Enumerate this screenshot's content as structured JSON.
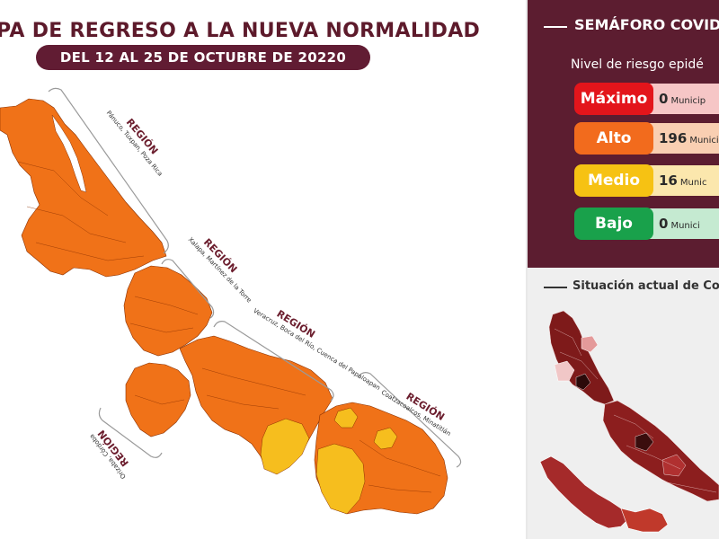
{
  "header": {
    "title": "PA DE REGRESO A LA NUEVA NORMALIDAD",
    "dates": "DEL 12  AL 25 DE OCTUBRE DE 20220"
  },
  "regions": [
    {
      "name": "REGIÓN",
      "cities": "Pánuco, Tuxpan, Poza Rica"
    },
    {
      "name": "REGIÓN",
      "cities": "Xalapa, Martínez de la Torre"
    },
    {
      "name": "REGIÓN",
      "cities": "Veracruz, Boca del Río, Cuenca del Papaloapan"
    },
    {
      "name": "REGIÓN",
      "cities": "Coatzacoalcos, Minatitlán"
    },
    {
      "name": "REGIÓN",
      "cities": "Orizaba, Córdoba"
    }
  ],
  "semaforo": {
    "title": "SEMÁFORO COVID",
    "subtitle": "Nivel de riesgo epidé",
    "levels": [
      {
        "label": "Máximo",
        "count": "0",
        "unit": "Municip",
        "color": "#e3151b",
        "tail": "#f6c6c6"
      },
      {
        "label": "Alto",
        "count": "196",
        "unit": "Munici",
        "color": "#f26b1d",
        "tail": "#f9cfb2"
      },
      {
        "label": "Medio",
        "count": "16",
        "unit": "Munic",
        "color": "#f6c213",
        "tail": "#fbe7ad"
      },
      {
        "label": "Bajo",
        "count": "0",
        "unit": "Munici",
        "color": "#19a14b",
        "tail": "#c5ead1"
      }
    ]
  },
  "situacion": {
    "title": "Situación actual de Cov"
  },
  "colors": {
    "alto": "#f07218",
    "medio": "#f6be1e",
    "burgundy": "#5c1d30"
  }
}
